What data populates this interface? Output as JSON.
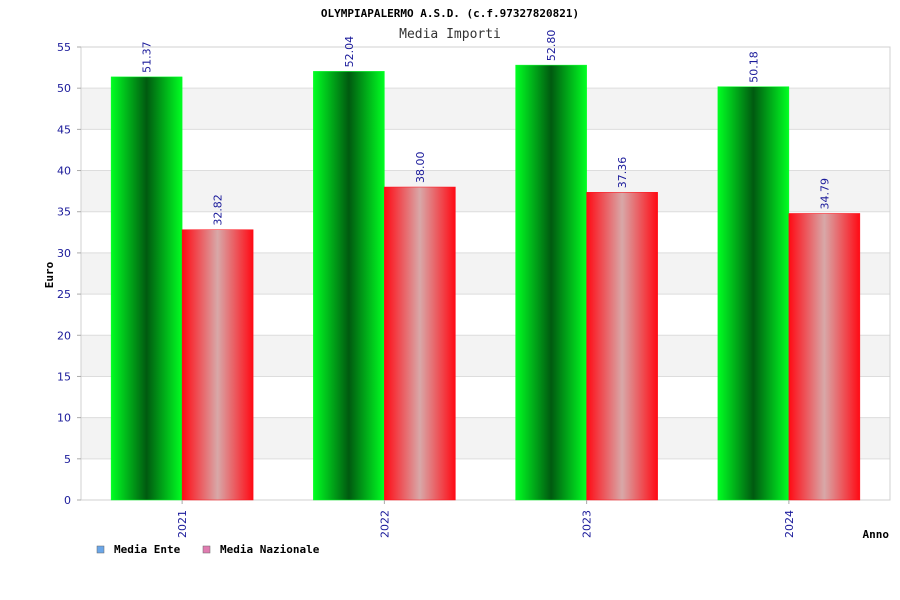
{
  "chart_data": {
    "type": "bar",
    "title": "OLYMPIAPALERMO A.S.D. (c.f.97327820821)",
    "subtitle": "Media Importi",
    "xlabel": "Anno",
    "ylabel": "Euro",
    "categories": [
      "2021",
      "2022",
      "2023",
      "2024"
    ],
    "series": [
      {
        "name": "Media Ente",
        "values": [
          51.37,
          52.04,
          52.8,
          50.18
        ],
        "labels": [
          "51.37",
          "52.04",
          "52.80",
          "50.18"
        ],
        "legend_color": "#6aa6e8",
        "bar_colors": [
          "#00ff22",
          "#005a10"
        ]
      },
      {
        "name": "Media Nazionale",
        "values": [
          32.82,
          38.0,
          37.36,
          34.79
        ],
        "labels": [
          "32.82",
          "38.00",
          "37.36",
          "34.79"
        ],
        "legend_color": "#e07cb0",
        "bar_colors": [
          "#ff0a14",
          "#d8a8a8"
        ]
      }
    ],
    "ylim": [
      0,
      55
    ],
    "yticks": [
      "0",
      "5",
      "10",
      "15",
      "20",
      "25",
      "30",
      "35",
      "40",
      "45",
      "50",
      "55"
    ],
    "grid": true,
    "legend_position": "bottom-left"
  }
}
